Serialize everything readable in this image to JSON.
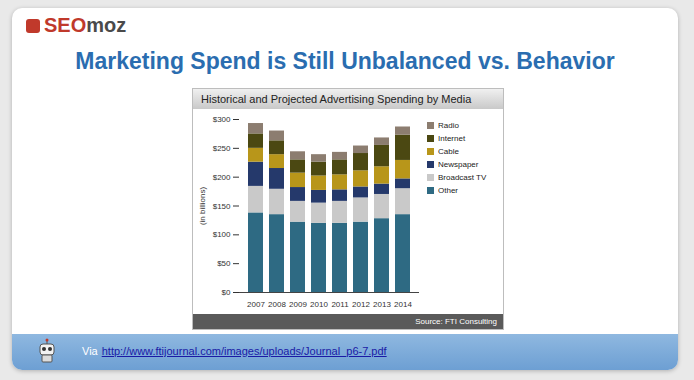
{
  "chart_data": {
    "type": "bar",
    "stacked": true,
    "title": "Historical and Projected Advertising Spending by Media",
    "categories": [
      "2007",
      "2008",
      "2009",
      "2010",
      "2011",
      "2012",
      "2013",
      "2014"
    ],
    "series": [
      {
        "name": "Other",
        "color": "#2e6a83",
        "values": [
          138,
          135,
          122,
          120,
          120,
          122,
          128,
          135
        ]
      },
      {
        "name": "Broadcast TV",
        "color": "#c9c9c9",
        "values": [
          46,
          44,
          36,
          35,
          38,
          42,
          42,
          45
        ]
      },
      {
        "name": "Newspaper",
        "color": "#25396b",
        "values": [
          42,
          36,
          24,
          22,
          20,
          19,
          18,
          17
        ]
      },
      {
        "name": "Cable",
        "color": "#b8961a",
        "values": [
          24,
          24,
          25,
          25,
          26,
          28,
          30,
          32
        ]
      },
      {
        "name": "Internet",
        "color": "#4b4812",
        "values": [
          25,
          24,
          23,
          24,
          26,
          30,
          37,
          44
        ]
      },
      {
        "name": "Radio",
        "color": "#8c7d70",
        "values": [
          18,
          17,
          14,
          13,
          13,
          13,
          13,
          14
        ]
      }
    ],
    "y_label": "(in billions)",
    "ylim": [
      0,
      300
    ],
    "yticks": [
      {
        "value": 0,
        "label": "$0"
      },
      {
        "value": 50,
        "label": "$50"
      },
      {
        "value": 100,
        "label": "$100"
      },
      {
        "value": 150,
        "label": "$150"
      },
      {
        "value": 200,
        "label": "$200"
      },
      {
        "value": 250,
        "label": "$250"
      },
      {
        "value": 300,
        "label": "$300"
      }
    ],
    "grid": false,
    "legend": "right",
    "source": "Source: FTI Consulting"
  },
  "slide": {
    "logo_prefix": "SEO",
    "logo_suffix": "moz",
    "title": "Marketing Spend is Still Unbalanced vs. Behavior",
    "footer_prefix": "Via",
    "footer_link": "http://www.ftijournal.com/images/uploads/Journal_p6-7.pdf"
  }
}
